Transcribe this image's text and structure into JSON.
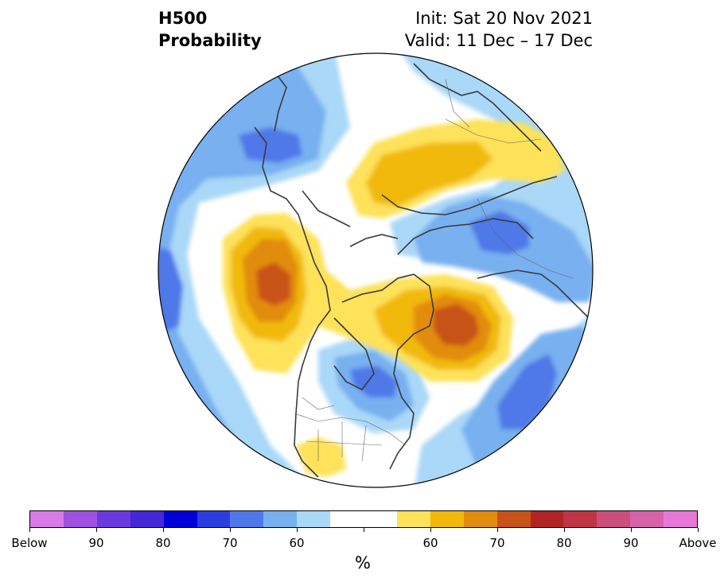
{
  "title": {
    "variable": "H500",
    "product": "Probability",
    "init": "Init: Sat 20 Nov 2021",
    "valid": "Valid: 11 Dec – 17 Dec"
  },
  "map": {
    "projection": "north-polar-stereographic",
    "shading": [
      {
        "region": "Alaska / Bering",
        "category": "below",
        "max_level": "70"
      },
      {
        "region": "Northeast Pacific / Canadian west coast",
        "category": "above",
        "max_level": "70"
      },
      {
        "region": "Greenland / Baffin Bay",
        "category": "above",
        "max_level": "70"
      },
      {
        "region": "Siberia / Arctic coast",
        "category": "above",
        "max_level": "60"
      },
      {
        "region": "Northwest Russia / Scandinavia",
        "category": "below",
        "max_level": "70"
      },
      {
        "region": "Central Canada / Great Lakes",
        "category": "below",
        "max_level": "70"
      },
      {
        "region": "North Atlantic",
        "category": "below",
        "max_level": "70"
      },
      {
        "region": "Southwest US / Mexico",
        "category": "above",
        "max_level": "60"
      }
    ]
  },
  "colorbar": {
    "colors": [
      "#d87ae8",
      "#a050e0",
      "#6a3ae0",
      "#4428d8",
      "#0000d8",
      "#2a3ee0",
      "#5078e8",
      "#78b0f0",
      "#aad8f8",
      "#ffffff",
      "#fde25a",
      "#f2b90a",
      "#e28c10",
      "#c85218",
      "#b02424",
      "#c03446",
      "#cc4e7c",
      "#d862aa",
      "#e878d8"
    ],
    "tick_labels": [
      "Below",
      "90",
      "80",
      "70",
      "60",
      "60",
      "70",
      "80",
      "90",
      "Above"
    ],
    "unit": "%"
  }
}
